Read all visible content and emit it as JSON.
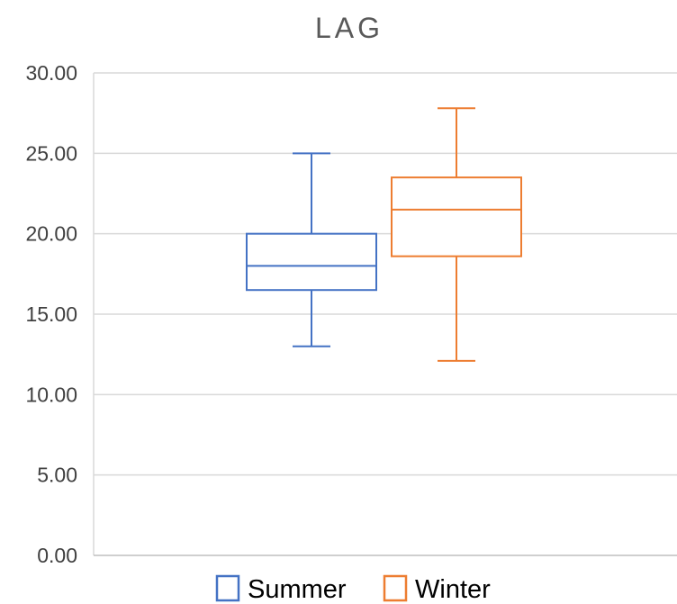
{
  "chart_data": {
    "type": "box",
    "title": "LAG",
    "xlabel": "",
    "ylabel": "",
    "ylim": [
      0,
      30
    ],
    "y_ticks": [
      "0.00",
      "5.00",
      "10.00",
      "15.00",
      "20.00",
      "25.00",
      "30.00"
    ],
    "grid": true,
    "legend_position": "bottom",
    "series": [
      {
        "name": "Summer",
        "color": "#4472C4",
        "min": 13.0,
        "q1": 16.5,
        "median": 18.0,
        "q3": 20.0,
        "max": 25.0
      },
      {
        "name": "Winter",
        "color": "#ED7D31",
        "min": 12.1,
        "q1": 18.6,
        "median": 21.5,
        "q3": 23.5,
        "max": 27.8
      }
    ]
  }
}
